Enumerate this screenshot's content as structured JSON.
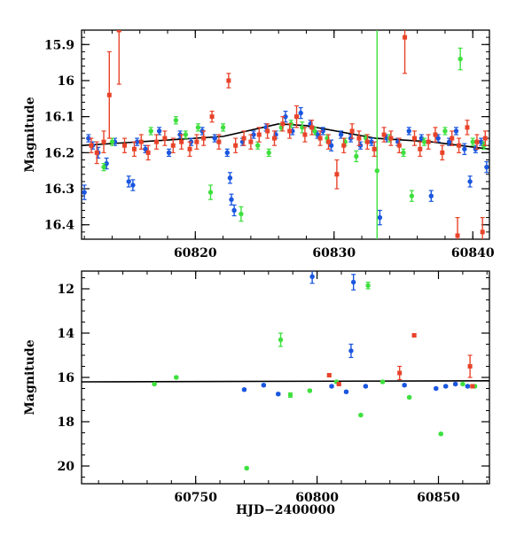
{
  "chart_data": [
    {
      "type": "scatter",
      "title": "",
      "xlabel": "",
      "ylabel": "Magnitude",
      "xlim": [
        60811.8,
        60841.2
      ],
      "ylim": [
        16.44,
        15.86
      ],
      "y_inverted": true,
      "xticks": [
        "60820",
        "60830",
        "60840"
      ],
      "xtick_values": [
        60820,
        60830,
        60840
      ],
      "yticks": [
        "15.9",
        "16",
        "16.1",
        "16.2",
        "16.3",
        "16.4"
      ],
      "ytick_values": [
        15.9,
        16.0,
        16.1,
        16.2,
        16.3,
        16.4
      ],
      "grid": false,
      "legend": "none",
      "colors": {
        "blue": "#1a56e0",
        "green": "#3ee03e",
        "red": "#e8432a",
        "fit": "#000000"
      },
      "fit_line": [
        [
          60811.8,
          16.18
        ],
        [
          60818,
          16.165
        ],
        [
          60822,
          16.155
        ],
        [
          60826,
          16.12
        ],
        [
          60828,
          16.125
        ],
        [
          60833,
          16.16
        ],
        [
          60837,
          16.17
        ],
        [
          60841.2,
          16.19
        ]
      ],
      "series": [
        {
          "color_key": "blue",
          "points": [
            [
              60812.0,
              16.31,
              0.02
            ],
            [
              60812.3,
              16.16,
              0.01
            ],
            [
              60812.6,
              16.18,
              0.01
            ],
            [
              60813.0,
              16.2,
              0.015
            ],
            [
              60813.6,
              16.23,
              0.015
            ],
            [
              60814.2,
              16.17,
              0.01
            ],
            [
              60815.2,
              16.28,
              0.015
            ],
            [
              60815.5,
              16.29,
              0.015
            ],
            [
              60815.8,
              16.17,
              0.01
            ],
            [
              60816.4,
              16.19,
              0.01
            ],
            [
              60817.4,
              16.14,
              0.01
            ],
            [
              60818.1,
              16.2,
              0.01
            ],
            [
              60818.9,
              16.15,
              0.01
            ],
            [
              60819.7,
              16.17,
              0.01
            ],
            [
              60820.5,
              16.14,
              0.01
            ],
            [
              60821.4,
              16.16,
              0.01
            ],
            [
              60822.3,
              16.2,
              0.01
            ],
            [
              60822.5,
              16.27,
              0.015
            ],
            [
              60822.6,
              16.33,
              0.015
            ],
            [
              60822.8,
              16.36,
              0.015
            ],
            [
              60823.4,
              16.17,
              0.01
            ],
            [
              60824.2,
              16.15,
              0.01
            ],
            [
              60825.1,
              16.13,
              0.01
            ],
            [
              60825.8,
              16.15,
              0.01
            ],
            [
              60826.5,
              16.1,
              0.015
            ],
            [
              60827.0,
              16.14,
              0.01
            ],
            [
              60827.6,
              16.09,
              0.015
            ],
            [
              60828.3,
              16.12,
              0.01
            ],
            [
              60828.8,
              16.15,
              0.01
            ],
            [
              60829.2,
              16.14,
              0.01
            ],
            [
              60829.8,
              16.18,
              0.015
            ],
            [
              60830.5,
              16.15,
              0.01
            ],
            [
              60831.2,
              16.16,
              0.01
            ],
            [
              60831.9,
              16.18,
              0.01
            ],
            [
              60832.7,
              16.17,
              0.01
            ],
            [
              60833.3,
              16.38,
              0.02
            ],
            [
              60833.8,
              16.16,
              0.01
            ],
            [
              60834.6,
              16.17,
              0.01
            ],
            [
              60835.4,
              16.14,
              0.01
            ],
            [
              60836.3,
              16.16,
              0.01
            ],
            [
              60837.0,
              16.32,
              0.015
            ],
            [
              60837.5,
              16.16,
              0.01
            ],
            [
              60838.3,
              16.17,
              0.01
            ],
            [
              60838.8,
              16.14,
              0.01
            ],
            [
              60839.4,
              16.19,
              0.015
            ],
            [
              60839.8,
              16.28,
              0.015
            ],
            [
              60840.2,
              16.19,
              0.01
            ],
            [
              60840.6,
              16.17,
              0.01
            ],
            [
              60841.0,
              16.24,
              0.015
            ]
          ]
        },
        {
          "color_key": "green",
          "points": [
            [
              60813.4,
              16.24,
              0.01
            ],
            [
              60814.0,
              16.17,
              0.01
            ],
            [
              60816.8,
              16.14,
              0.01
            ],
            [
              60818.6,
              16.11,
              0.01
            ],
            [
              60819.3,
              16.15,
              0.01
            ],
            [
              60820.2,
              16.13,
              0.01
            ],
            [
              60821.1,
              16.31,
              0.02
            ],
            [
              60822.0,
              16.13,
              0.01
            ],
            [
              60823.3,
              16.37,
              0.02
            ],
            [
              60824.5,
              16.18,
              0.01
            ],
            [
              60825.3,
              16.2,
              0.01
            ],
            [
              60826.2,
              16.13,
              0.01
            ],
            [
              60826.9,
              16.12,
              0.01
            ],
            [
              60827.7,
              16.13,
              0.015
            ],
            [
              60828.6,
              16.14,
              0.01
            ],
            [
              60829.5,
              16.16,
              0.01
            ],
            [
              60830.8,
              16.17,
              0.01
            ],
            [
              60831.6,
              16.21,
              0.015
            ],
            [
              60832.3,
              16.16,
              0.01
            ],
            [
              60833.1,
              16.25,
              0.4
            ],
            [
              60834.0,
              16.16,
              0.01
            ],
            [
              60835.0,
              16.2,
              0.01
            ],
            [
              60835.6,
              16.32,
              0.015
            ],
            [
              60836.5,
              16.17,
              0.01
            ],
            [
              60838.0,
              16.14,
              0.01
            ],
            [
              60839.1,
              15.94,
              0.03
            ],
            [
              60840.0,
              16.17,
              0.01
            ],
            [
              60840.8,
              16.18,
              0.01
            ]
          ]
        },
        {
          "color_key": "red",
          "points": [
            [
              60812.5,
              16.18,
              0.02
            ],
            [
              60812.9,
              16.2,
              0.03
            ],
            [
              60813.4,
              16.17,
              0.03
            ],
            [
              60813.8,
              16.04,
              0.12
            ],
            [
              60814.5,
              15.86,
              0.15
            ],
            [
              60814.9,
              16.18,
              0.02
            ],
            [
              60815.6,
              16.19,
              0.02
            ],
            [
              60816.1,
              16.17,
              0.02
            ],
            [
              60816.6,
              16.2,
              0.02
            ],
            [
              60817.2,
              16.17,
              0.02
            ],
            [
              60817.8,
              16.16,
              0.02
            ],
            [
              60818.4,
              16.18,
              0.02
            ],
            [
              60819.0,
              16.17,
              0.02
            ],
            [
              60819.6,
              16.19,
              0.02
            ],
            [
              60820.1,
              16.17,
              0.02
            ],
            [
              60820.6,
              16.16,
              0.02
            ],
            [
              60821.2,
              16.1,
              0.015
            ],
            [
              60821.7,
              16.17,
              0.02
            ],
            [
              60822.4,
              16.0,
              0.02
            ],
            [
              60822.9,
              16.18,
              0.02
            ],
            [
              60823.5,
              16.16,
              0.02
            ],
            [
              60824.0,
              16.17,
              0.02
            ],
            [
              60824.6,
              16.15,
              0.02
            ],
            [
              60825.2,
              16.14,
              0.02
            ],
            [
              60825.7,
              16.16,
              0.02
            ],
            [
              60826.3,
              16.12,
              0.02
            ],
            [
              60826.8,
              16.14,
              0.02
            ],
            [
              60827.3,
              16.1,
              0.03
            ],
            [
              60827.9,
              16.15,
              0.02
            ],
            [
              60828.4,
              16.13,
              0.02
            ],
            [
              60829.0,
              16.16,
              0.02
            ],
            [
              60829.6,
              16.17,
              0.02
            ],
            [
              60830.2,
              16.26,
              0.04
            ],
            [
              60830.7,
              16.18,
              0.02
            ],
            [
              60831.3,
              16.14,
              0.02
            ],
            [
              60831.8,
              16.16,
              0.02
            ],
            [
              60832.4,
              16.17,
              0.02
            ],
            [
              60832.9,
              16.19,
              0.02
            ],
            [
              60833.6,
              16.15,
              0.02
            ],
            [
              60834.1,
              16.16,
              0.02
            ],
            [
              60834.7,
              16.18,
              0.02
            ],
            [
              60835.1,
              15.88,
              0.1
            ],
            [
              60835.8,
              16.16,
              0.02
            ],
            [
              60836.2,
              16.19,
              0.02
            ],
            [
              60836.8,
              16.17,
              0.02
            ],
            [
              60837.3,
              16.15,
              0.02
            ],
            [
              60837.8,
              16.2,
              0.02
            ],
            [
              60838.5,
              16.16,
              0.02
            ],
            [
              60839.0,
              16.18,
              0.02
            ],
            [
              60839.6,
              16.13,
              0.02
            ],
            [
              60840.3,
              16.17,
              0.02
            ],
            [
              60840.9,
              16.16,
              0.02
            ],
            [
              60838.9,
              16.43,
              0.05
            ],
            [
              60840.7,
              16.42,
              0.04
            ]
          ]
        }
      ]
    },
    {
      "type": "scatter",
      "title": "",
      "xlabel": "HJD−2400000",
      "ylabel": "Magnitude",
      "xlim": [
        60703,
        60871
      ],
      "ylim": [
        20.8,
        11.2
      ],
      "y_inverted": true,
      "xticks": [
        "60750",
        "60800",
        "60850"
      ],
      "xtick_values": [
        60750,
        60800,
        60850
      ],
      "yticks": [
        "12",
        "14",
        "16",
        "18",
        "20"
      ],
      "ytick_values": [
        12,
        14,
        16,
        18,
        20
      ],
      "grid": false,
      "legend": "none",
      "colors": {
        "blue": "#1a56e0",
        "green": "#3ee03e",
        "red": "#e8432a",
        "fit": "#000000"
      },
      "fit_line": [
        [
          60703,
          16.2
        ],
        [
          60871,
          16.15
        ]
      ],
      "series": [
        {
          "color_key": "blue",
          "points": [
            [
              60770,
              16.55,
              0.05
            ],
            [
              60778,
              16.35,
              0.05
            ],
            [
              60784,
              16.75,
              0.05
            ],
            [
              60798,
              11.45,
              0.3
            ],
            [
              60806,
              16.4,
              0.05
            ],
            [
              60812,
              16.65,
              0.05
            ],
            [
              60814,
              14.8,
              0.3
            ],
            [
              60815,
              11.7,
              0.35
            ],
            [
              60820,
              16.4,
              0.05
            ],
            [
              60836,
              16.35,
              0.05
            ],
            [
              60849,
              16.5,
              0.05
            ],
            [
              60853,
              16.4,
              0.05
            ],
            [
              60857,
              16.3,
              0.05
            ],
            [
              60862,
              16.4,
              0.05
            ]
          ]
        },
        {
          "color_key": "green",
          "points": [
            [
              60733,
              16.3,
              0.05
            ],
            [
              60742,
              16.0,
              0.05
            ],
            [
              60771,
              20.1,
              0.05
            ],
            [
              60785,
              14.3,
              0.3
            ],
            [
              60789,
              16.8,
              0.1
            ],
            [
              60797,
              16.6,
              0.05
            ],
            [
              60808,
              16.2,
              0.05
            ],
            [
              60818,
              17.7,
              0.05
            ],
            [
              60821,
              11.85,
              0.15
            ],
            [
              60827,
              16.2,
              0.05
            ],
            [
              60838,
              16.9,
              0.05
            ],
            [
              60851,
              18.55,
              0.05
            ],
            [
              60860,
              16.3,
              0.05
            ],
            [
              60865,
              16.4,
              0.05
            ]
          ]
        },
        {
          "color_key": "red",
          "points": [
            [
              60805,
              15.9,
              0.05
            ],
            [
              60809,
              16.3,
              0.05
            ],
            [
              60834,
              15.8,
              0.3
            ],
            [
              60840,
              14.1,
              0.05
            ],
            [
              60863,
              15.5,
              0.5
            ],
            [
              60864,
              16.4,
              0.05
            ]
          ]
        }
      ]
    }
  ]
}
